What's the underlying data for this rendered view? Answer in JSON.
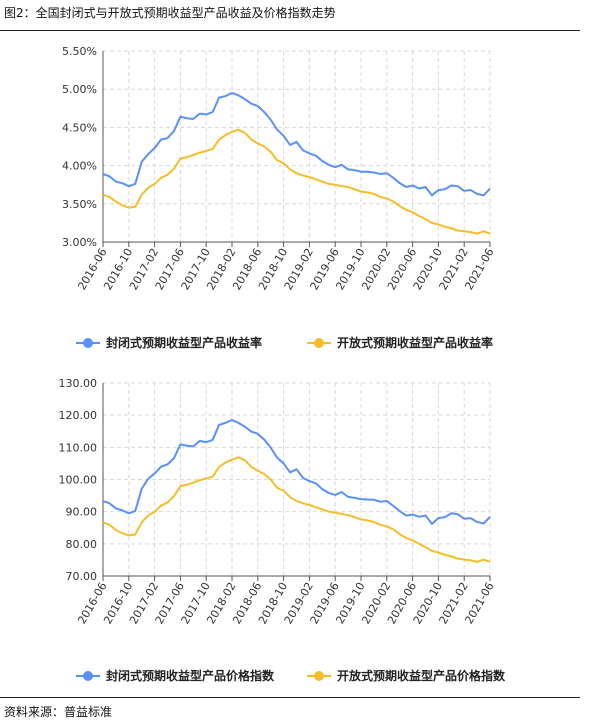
{
  "page": {
    "title": "图2：全国封闭式与开放式预期收益型产品收益及价格指数走势",
    "source": "资料来源：普益标准"
  },
  "colors": {
    "series1": "#5b8ff9",
    "series2": "#f5bd27",
    "grid": "#d9d9d9",
    "axis": "#555555"
  },
  "chart_data": [
    {
      "type": "line",
      "x_tick_labels": [
        "2016-06",
        "2016-10",
        "2017-02",
        "2017-06",
        "2017-10",
        "2018-02",
        "2018-06",
        "2018-10",
        "2019-02",
        "2019-06",
        "2019-10",
        "2020-02",
        "2020-06",
        "2020-10",
        "2021-02",
        "2021-06"
      ],
      "y_tick_labels": [
        "3.00%",
        "3.50%",
        "4.00%",
        "4.50%",
        "5.00%",
        "5.50%"
      ],
      "ylim": [
        3.0,
        5.5
      ],
      "grid": true,
      "legend_position": "bottom",
      "series": [
        {
          "name": "封闭式预期收益型产品收益率",
          "color": "#5b8ff9",
          "values": [
            3.89,
            3.86,
            3.79,
            3.77,
            3.73,
            3.76,
            4.05,
            4.15,
            4.23,
            4.34,
            4.36,
            4.45,
            4.64,
            4.62,
            4.61,
            4.68,
            4.67,
            4.7,
            4.89,
            4.91,
            4.95,
            4.92,
            4.87,
            4.81,
            4.78,
            4.7,
            4.6,
            4.47,
            4.39,
            4.27,
            4.31,
            4.2,
            4.16,
            4.13,
            4.06,
            4.01,
            3.98,
            4.01,
            3.95,
            3.94,
            3.92,
            3.92,
            3.91,
            3.89,
            3.9,
            3.84,
            3.77,
            3.72,
            3.74,
            3.7,
            3.72,
            3.61,
            3.68,
            3.69,
            3.74,
            3.73,
            3.67,
            3.68,
            3.63,
            3.61,
            3.7
          ]
        },
        {
          "name": "开放式预期收益型产品收益率",
          "color": "#f5bd27",
          "values": [
            3.62,
            3.59,
            3.53,
            3.48,
            3.45,
            3.46,
            3.62,
            3.71,
            3.76,
            3.84,
            3.88,
            3.96,
            4.09,
            4.11,
            4.14,
            4.17,
            4.19,
            4.22,
            4.34,
            4.4,
            4.44,
            4.47,
            4.43,
            4.34,
            4.29,
            4.25,
            4.18,
            4.07,
            4.03,
            3.95,
            3.9,
            3.87,
            3.85,
            3.82,
            3.79,
            3.76,
            3.75,
            3.73,
            3.72,
            3.69,
            3.66,
            3.65,
            3.63,
            3.59,
            3.57,
            3.53,
            3.47,
            3.42,
            3.39,
            3.34,
            3.3,
            3.25,
            3.23,
            3.2,
            3.18,
            3.15,
            3.14,
            3.13,
            3.11,
            3.14,
            3.11
          ]
        }
      ]
    },
    {
      "type": "line",
      "x_tick_labels": [
        "2016-06",
        "2016-10",
        "2017-02",
        "2017-06",
        "2017-10",
        "2018-02",
        "2018-06",
        "2018-10",
        "2019-02",
        "2019-06",
        "2019-10",
        "2020-02",
        "2020-06",
        "2020-10",
        "2021-02",
        "2021-06"
      ],
      "y_tick_labels": [
        "70.00",
        "80.00",
        "90.00",
        "100.00",
        "110.00",
        "120.00",
        "130.00"
      ],
      "ylim": [
        70,
        130
      ],
      "grid": true,
      "legend_position": "bottom",
      "series": [
        {
          "name": "封闭式预期收益型产品价格指数",
          "color": "#5b8ff9",
          "values": [
            93.3,
            92.6,
            91.0,
            90.4,
            89.5,
            90.2,
            97.1,
            100.2,
            101.9,
            104.0,
            104.7,
            106.6,
            110.9,
            110.5,
            110.3,
            112.0,
            111.6,
            112.3,
            117.0,
            117.6,
            118.5,
            117.6,
            116.4,
            114.9,
            114.2,
            112.4,
            109.9,
            106.8,
            105.0,
            102.2,
            103.2,
            100.5,
            99.5,
            98.8,
            97.0,
            95.8,
            95.2,
            96.1,
            94.6,
            94.3,
            93.9,
            93.8,
            93.7,
            93.1,
            93.3,
            91.8,
            90.2,
            88.8,
            89.1,
            88.4,
            88.8,
            86.2,
            88.0,
            88.3,
            89.5,
            89.2,
            87.8,
            88.0,
            86.8,
            86.3,
            88.4
          ]
        },
        {
          "name": "开放式预期收益型产品价格指数",
          "color": "#f5bd27",
          "values": [
            86.7,
            85.9,
            84.3,
            83.3,
            82.6,
            82.9,
            86.7,
            88.8,
            89.9,
            91.9,
            92.9,
            94.8,
            97.9,
            98.4,
            99.0,
            99.8,
            100.3,
            100.9,
            103.9,
            105.3,
            106.2,
            106.9,
            106.0,
            103.9,
            102.7,
            101.7,
            100.0,
            97.4,
            96.5,
            94.5,
            93.3,
            92.6,
            92.1,
            91.4,
            90.7,
            90.0,
            89.7,
            89.3,
            88.9,
            88.3,
            87.6,
            87.3,
            86.8,
            85.9,
            85.4,
            84.5,
            83.0,
            81.8,
            81.1,
            80.0,
            79.0,
            77.8,
            77.3,
            76.6,
            76.1,
            75.4,
            75.1,
            74.9,
            74.4,
            75.1,
            74.4
          ]
        }
      ]
    }
  ]
}
